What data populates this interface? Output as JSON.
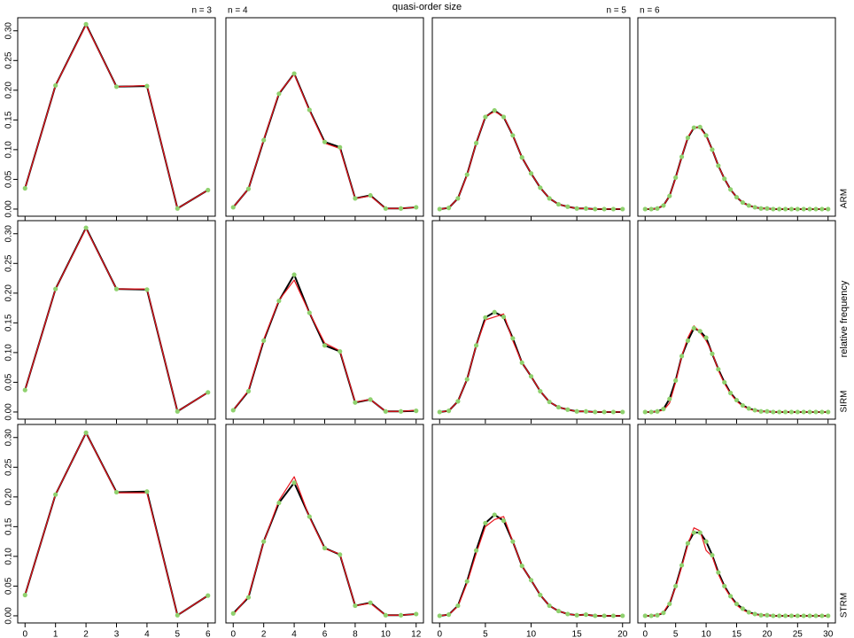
{
  "figure": {
    "xlabel": "quasi-order size",
    "ylabel": "relative frequency",
    "column_labels": [
      "n = 3",
      "n = 4",
      "n = 5",
      "n = 6"
    ],
    "row_labels": [
      "ARM",
      "SIRM",
      "STRM"
    ]
  },
  "chart_data": [
    {
      "type": "line",
      "x": [
        0,
        1,
        2,
        3,
        4,
        5,
        6
      ],
      "xlim": [
        -0.24,
        6.24
      ],
      "xticks": [
        0,
        1,
        2,
        3,
        4,
        5,
        6
      ],
      "ylim": [
        -0.012,
        0.322
      ],
      "yticks": [
        {
          "value": 0,
          "label": "0.00"
        },
        {
          "value": 0.05,
          "label": "0.05"
        },
        {
          "value": 0.1,
          "label": "0.10"
        },
        {
          "value": 0.15,
          "label": "0.15"
        },
        {
          "value": 0.2,
          "label": "0.20"
        },
        {
          "value": 0.25,
          "label": "0.25"
        },
        {
          "value": 0.3,
          "label": "0.30"
        }
      ],
      "series": [
        {
          "color": "#000000",
          "marker_color": "#8fd16e",
          "values": [
            0.035,
            0.208,
            0.311,
            0.206,
            0.207,
            0.001,
            0.032
          ]
        },
        {
          "color": "#e8141c",
          "values": [
            0.035,
            0.208,
            0.31,
            0.206,
            0.208,
            0.001,
            0.032
          ]
        }
      ]
    },
    {
      "type": "line",
      "x": [
        0,
        1,
        2,
        3,
        4,
        5,
        6,
        7,
        8,
        9,
        10,
        11,
        12
      ],
      "xlim": [
        -0.48,
        12.48
      ],
      "xticks": [
        0,
        2,
        4,
        6,
        8,
        10,
        12
      ],
      "ylim": [
        -0.012,
        0.322
      ],
      "series": [
        {
          "color": "#000000",
          "marker_color": "#8fd16e",
          "values": [
            0.003,
            0.034,
            0.116,
            0.194,
            0.228,
            0.167,
            0.113,
            0.104,
            0.018,
            0.023,
            0.001,
            0.001,
            0.003
          ]
        },
        {
          "color": "#e8141c",
          "values": [
            0.003,
            0.034,
            0.117,
            0.195,
            0.227,
            0.166,
            0.111,
            0.102,
            0.018,
            0.022,
            0.001,
            0.001,
            0.003
          ]
        }
      ]
    },
    {
      "type": "line",
      "x": [
        0,
        1,
        2,
        3,
        4,
        5,
        6,
        7,
        8,
        9,
        10,
        11,
        12,
        13,
        14,
        15,
        16,
        17,
        18,
        19,
        20
      ],
      "xlim": [
        -0.8,
        20.8
      ],
      "xticks": [
        0,
        5,
        10,
        15,
        20
      ],
      "ylim": [
        -0.012,
        0.322
      ],
      "series": [
        {
          "color": "#000000",
          "marker_color": "#8fd16e",
          "values": [
            0,
            0.002,
            0.018,
            0.058,
            0.111,
            0.155,
            0.166,
            0.155,
            0.124,
            0.087,
            0.06,
            0.036,
            0.018,
            0.008,
            0.004,
            0.001,
            0.001,
            0,
            0,
            0,
            0
          ]
        },
        {
          "color": "#e8141c",
          "values": [
            0,
            0.002,
            0.018,
            0.057,
            0.111,
            0.156,
            0.164,
            0.156,
            0.124,
            0.087,
            0.06,
            0.036,
            0.018,
            0.008,
            0.004,
            0.001,
            0.001,
            0,
            0,
            0,
            0
          ]
        }
      ]
    },
    {
      "type": "line",
      "x": [
        0,
        1,
        2,
        3,
        4,
        5,
        6,
        7,
        8,
        9,
        10,
        11,
        12,
        13,
        14,
        15,
        16,
        17,
        18,
        19,
        20,
        21,
        22,
        23,
        24,
        25,
        26,
        27,
        28,
        29,
        30
      ],
      "xlim": [
        -1.2,
        31.2
      ],
      "xticks": [
        0,
        5,
        10,
        15,
        20,
        25,
        30
      ],
      "ylim": [
        -0.012,
        0.322
      ],
      "series": [
        {
          "color": "#000000",
          "marker_color": "#8fd16e",
          "values": [
            0,
            0,
            0.001,
            0.006,
            0.022,
            0.053,
            0.088,
            0.12,
            0.137,
            0.138,
            0.124,
            0.1,
            0.073,
            0.051,
            0.033,
            0.02,
            0.011,
            0.006,
            0.003,
            0.001,
            0.001,
            0,
            0,
            0,
            0,
            0,
            0,
            0,
            0,
            0,
            0
          ]
        },
        {
          "color": "#e8141c",
          "values": [
            0,
            0,
            0.001,
            0.006,
            0.022,
            0.052,
            0.088,
            0.121,
            0.138,
            0.137,
            0.123,
            0.1,
            0.073,
            0.051,
            0.033,
            0.02,
            0.011,
            0.006,
            0.003,
            0.001,
            0.001,
            0,
            0,
            0,
            0,
            0,
            0,
            0,
            0,
            0,
            0
          ]
        }
      ]
    },
    {
      "type": "line",
      "x": [
        0,
        1,
        2,
        3,
        4,
        5,
        6
      ],
      "xlim": [
        -0.24,
        6.24
      ],
      "xticks": [
        0,
        1,
        2,
        3,
        4,
        5,
        6
      ],
      "ylim": [
        -0.012,
        0.322
      ],
      "yticks": [
        {
          "value": 0,
          "label": "0.00"
        },
        {
          "value": 0.05,
          "label": "0.05"
        },
        {
          "value": 0.1,
          "label": "0.10"
        },
        {
          "value": 0.15,
          "label": "0.15"
        },
        {
          "value": 0.2,
          "label": "0.20"
        },
        {
          "value": 0.25,
          "label": "0.25"
        },
        {
          "value": 0.3,
          "label": "0.30"
        }
      ],
      "series": [
        {
          "color": "#000000",
          "marker_color": "#8fd16e",
          "values": [
            0.037,
            0.207,
            0.31,
            0.207,
            0.206,
            0.001,
            0.033
          ]
        },
        {
          "color": "#e8141c",
          "values": [
            0.037,
            0.207,
            0.309,
            0.207,
            0.207,
            0.001,
            0.033
          ]
        }
      ]
    },
    {
      "type": "line",
      "x": [
        0,
        1,
        2,
        3,
        4,
        5,
        6,
        7,
        8,
        9,
        10,
        11,
        12
      ],
      "xlim": [
        -0.48,
        12.48
      ],
      "xticks": [
        0,
        2,
        4,
        6,
        8,
        10,
        12
      ],
      "ylim": [
        -0.012,
        0.322
      ],
      "series": [
        {
          "color": "#000000",
          "marker_color": "#8fd16e",
          "values": [
            0.003,
            0.035,
            0.12,
            0.187,
            0.231,
            0.167,
            0.112,
            0.102,
            0.016,
            0.021,
            0.001,
            0.001,
            0.002
          ]
        },
        {
          "color": "#e8141c",
          "values": [
            0.003,
            0.036,
            0.122,
            0.188,
            0.222,
            0.167,
            0.116,
            0.103,
            0.017,
            0.021,
            0.001,
            0.001,
            0.003
          ]
        }
      ]
    },
    {
      "type": "line",
      "x": [
        0,
        1,
        2,
        3,
        4,
        5,
        6,
        7,
        8,
        9,
        10,
        11,
        12,
        13,
        14,
        15,
        16,
        17,
        18,
        19,
        20
      ],
      "xlim": [
        -0.8,
        20.8
      ],
      "xticks": [
        0,
        5,
        10,
        15,
        20
      ],
      "ylim": [
        -0.012,
        0.322
      ],
      "series": [
        {
          "color": "#000000",
          "marker_color": "#8fd16e",
          "values": [
            0,
            0.002,
            0.018,
            0.055,
            0.112,
            0.159,
            0.168,
            0.16,
            0.124,
            0.083,
            0.06,
            0.035,
            0.017,
            0.008,
            0.004,
            0.001,
            0.001,
            0,
            0,
            0,
            0
          ]
        },
        {
          "color": "#e8141c",
          "values": [
            0,
            0.002,
            0.018,
            0.055,
            0.112,
            0.155,
            0.16,
            0.165,
            0.12,
            0.083,
            0.06,
            0.035,
            0.017,
            0.008,
            0.004,
            0.001,
            0.001,
            0,
            0,
            0,
            0
          ]
        }
      ]
    },
    {
      "type": "line",
      "x": [
        0,
        1,
        2,
        3,
        4,
        5,
        6,
        7,
        8,
        9,
        10,
        11,
        12,
        13,
        14,
        15,
        16,
        17,
        18,
        19,
        20,
        21,
        22,
        23,
        24,
        25,
        26,
        27,
        28,
        29,
        30
      ],
      "xlim": [
        -1.2,
        31.2
      ],
      "xticks": [
        0,
        5,
        10,
        15,
        20,
        25,
        30
      ],
      "ylim": [
        -0.012,
        0.322
      ],
      "series": [
        {
          "color": "#000000",
          "marker_color": "#8fd16e",
          "values": [
            0,
            0,
            0.001,
            0.005,
            0.022,
            0.053,
            0.094,
            0.12,
            0.141,
            0.136,
            0.125,
            0.098,
            0.072,
            0.05,
            0.032,
            0.02,
            0.011,
            0.006,
            0.003,
            0.001,
            0.001,
            0,
            0,
            0,
            0,
            0,
            0,
            0,
            0,
            0,
            0
          ]
        },
        {
          "color": "#e8141c",
          "values": [
            0,
            0,
            0.001,
            0.003,
            0.015,
            0.05,
            0.094,
            0.125,
            0.145,
            0.134,
            0.12,
            0.1,
            0.07,
            0.048,
            0.031,
            0.018,
            0.01,
            0.005,
            0.002,
            0.001,
            0.001,
            0,
            0,
            0,
            0,
            0,
            0,
            0,
            0,
            0,
            0
          ]
        }
      ]
    },
    {
      "type": "line",
      "x": [
        0,
        1,
        2,
        3,
        4,
        5,
        6
      ],
      "xlim": [
        -0.24,
        6.24
      ],
      "xticks": [
        0,
        1,
        2,
        3,
        4,
        5,
        6
      ],
      "ylim": [
        -0.012,
        0.322
      ],
      "yticks": [
        {
          "value": 0,
          "label": "0.00"
        },
        {
          "value": 0.05,
          "label": "0.05"
        },
        {
          "value": 0.1,
          "label": "0.10"
        },
        {
          "value": 0.15,
          "label": "0.15"
        },
        {
          "value": 0.2,
          "label": "0.20"
        },
        {
          "value": 0.25,
          "label": "0.25"
        },
        {
          "value": 0.3,
          "label": "0.30"
        }
      ],
      "series": [
        {
          "color": "#000000",
          "marker_color": "#8fd16e",
          "values": [
            0.035,
            0.204,
            0.308,
            0.208,
            0.209,
            0.001,
            0.034
          ]
        },
        {
          "color": "#e8141c",
          "values": [
            0.035,
            0.204,
            0.308,
            0.207,
            0.207,
            0.001,
            0.034
          ]
        }
      ]
    },
    {
      "type": "line",
      "x": [
        0,
        1,
        2,
        3,
        4,
        5,
        6,
        7,
        8,
        9,
        10,
        11,
        12
      ],
      "xlim": [
        -0.48,
        12.48
      ],
      "xticks": [
        0,
        2,
        4,
        6,
        8,
        10,
        12
      ],
      "ylim": [
        -0.012,
        0.322
      ],
      "series": [
        {
          "color": "#000000",
          "marker_color": "#8fd16e",
          "values": [
            0.004,
            0.031,
            0.125,
            0.19,
            0.224,
            0.167,
            0.114,
            0.103,
            0.017,
            0.022,
            0.001,
            0.001,
            0.003
          ]
        },
        {
          "color": "#e8141c",
          "values": [
            0.002,
            0.033,
            0.124,
            0.194,
            0.234,
            0.166,
            0.113,
            0.104,
            0.017,
            0.021,
            0.001,
            0.001,
            0.003
          ]
        }
      ]
    },
    {
      "type": "line",
      "x": [
        0,
        1,
        2,
        3,
        4,
        5,
        6,
        7,
        8,
        9,
        10,
        11,
        12,
        13,
        14,
        15,
        16,
        17,
        18,
        19,
        20
      ],
      "xlim": [
        -0.8,
        20.8
      ],
      "xticks": [
        0,
        5,
        10,
        15,
        20
      ],
      "ylim": [
        -0.012,
        0.322
      ],
      "series": [
        {
          "color": "#000000",
          "marker_color": "#8fd16e",
          "values": [
            0,
            0.002,
            0.017,
            0.058,
            0.11,
            0.156,
            0.17,
            0.16,
            0.125,
            0.084,
            0.06,
            0.035,
            0.017,
            0.008,
            0.003,
            0.001,
            0.002,
            0,
            0,
            0,
            0
          ]
        },
        {
          "color": "#e8141c",
          "values": [
            0,
            0.002,
            0.016,
            0.055,
            0.105,
            0.15,
            0.162,
            0.167,
            0.125,
            0.084,
            0.06,
            0.035,
            0.017,
            0.008,
            0.003,
            0.001,
            0.002,
            0,
            0,
            0,
            0
          ]
        }
      ]
    },
    {
      "type": "line",
      "x": [
        0,
        1,
        2,
        3,
        4,
        5,
        6,
        7,
        8,
        9,
        10,
        11,
        12,
        13,
        14,
        15,
        16,
        17,
        18,
        19,
        20,
        21,
        22,
        23,
        24,
        25,
        26,
        27,
        28,
        29,
        30
      ],
      "xlim": [
        -1.2,
        31.2
      ],
      "xticks": [
        0,
        5,
        10,
        15,
        20,
        25,
        30
      ],
      "ylim": [
        -0.012,
        0.322
      ],
      "series": [
        {
          "color": "#000000",
          "marker_color": "#8fd16e",
          "values": [
            0,
            0,
            0.001,
            0.005,
            0.02,
            0.05,
            0.085,
            0.122,
            0.14,
            0.14,
            0.125,
            0.102,
            0.073,
            0.05,
            0.033,
            0.02,
            0.012,
            0.006,
            0.003,
            0.001,
            0.001,
            0,
            0,
            0,
            0,
            0,
            0,
            0,
            0,
            0,
            0
          ]
        },
        {
          "color": "#e8141c",
          "values": [
            0,
            0,
            0.001,
            0.006,
            0.022,
            0.048,
            0.083,
            0.12,
            0.148,
            0.143,
            0.11,
            0.1,
            0.07,
            0.048,
            0.032,
            0.018,
            0.01,
            0.005,
            0.002,
            0.001,
            0.001,
            0,
            0,
            0,
            0,
            0,
            0,
            0,
            0,
            0,
            0
          ]
        }
      ]
    }
  ]
}
